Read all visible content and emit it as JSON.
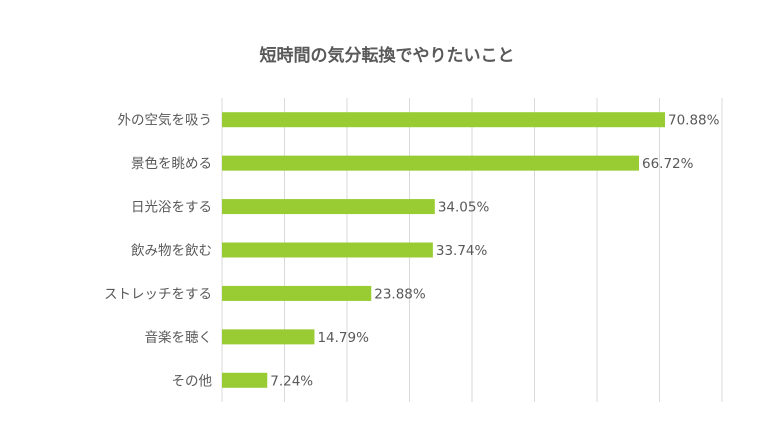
{
  "chart_data": {
    "type": "bar",
    "orientation": "horizontal",
    "title": "短時間の気分転換でやりたいこと",
    "categories": [
      "外の空気を吸う",
      "景色を眺める",
      "日光浴をする",
      "飲み物を飲む",
      "ストレッチをする",
      "音楽を聴く",
      "その他"
    ],
    "values": [
      70.88,
      66.72,
      34.05,
      33.74,
      23.88,
      14.79,
      7.24
    ],
    "value_labels": [
      "70.88%",
      "66.72%",
      "34.05%",
      "33.74%",
      "23.88%",
      "14.79%",
      "7.24%"
    ],
    "xlim": [
      0,
      80
    ],
    "grid": true,
    "legend": "none",
    "bar_color": "#99cc33"
  }
}
